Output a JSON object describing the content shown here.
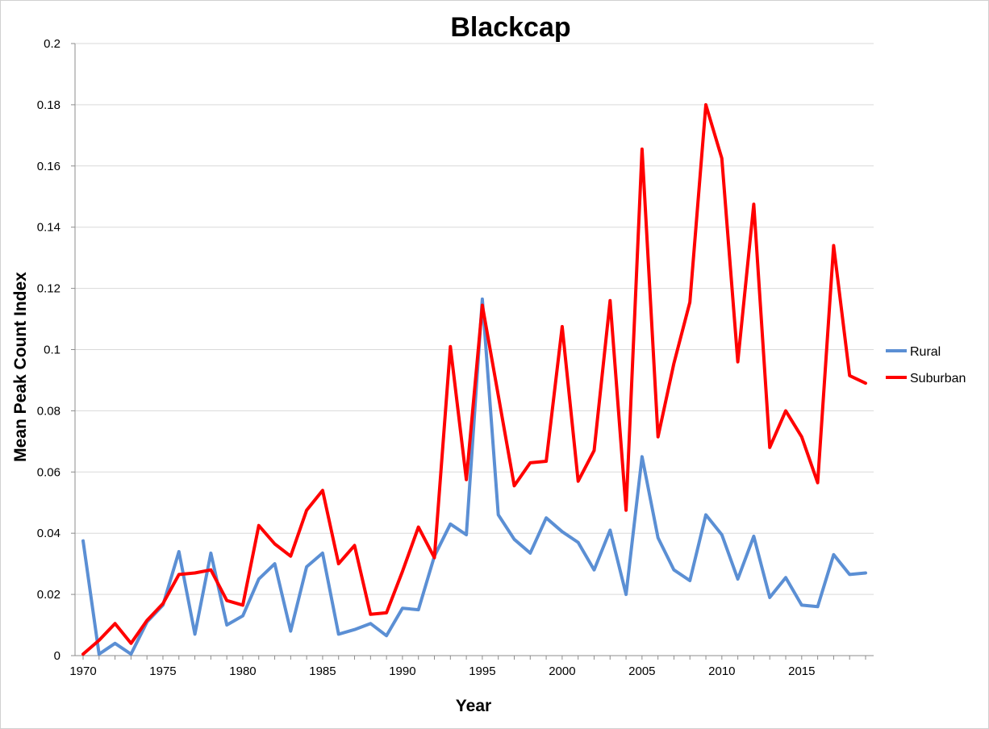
{
  "chart_data": {
    "type": "line",
    "title": "Blackcap",
    "xlabel": "Year",
    "ylabel": "Mean Peak Count Index",
    "xlim": [
      1970,
      2019
    ],
    "ylim": [
      0,
      0.2
    ],
    "x_ticks": [
      "1970",
      "1975",
      "1980",
      "1985",
      "1990",
      "1995",
      "2000",
      "2005",
      "2010",
      "2015"
    ],
    "y_ticks": [
      "0",
      "0.02",
      "0.04",
      "0.06",
      "0.08",
      "0.1",
      "0.12",
      "0.14",
      "0.16",
      "0.18",
      "0.2"
    ],
    "grid": "horizontal",
    "legend_position": "right",
    "x": [
      1970,
      1971,
      1972,
      1973,
      1974,
      1975,
      1976,
      1977,
      1978,
      1979,
      1980,
      1981,
      1982,
      1983,
      1984,
      1985,
      1986,
      1987,
      1988,
      1989,
      1990,
      1991,
      1992,
      1993,
      1994,
      1995,
      1996,
      1997,
      1998,
      1999,
      2000,
      2001,
      2002,
      2003,
      2004,
      2005,
      2006,
      2007,
      2008,
      2009,
      2010,
      2011,
      2012,
      2013,
      2014,
      2015,
      2016,
      2017,
      2018,
      2019
    ],
    "series": [
      {
        "name": "Rural",
        "color": "#5b8fd4",
        "values": [
          0.0375,
          0.0005,
          0.004,
          0.0005,
          0.011,
          0.0165,
          0.034,
          0.007,
          0.0335,
          0.01,
          0.013,
          0.025,
          0.03,
          0.008,
          0.029,
          0.0335,
          0.007,
          0.0085,
          0.0105,
          0.0065,
          0.0155,
          0.015,
          0.0325,
          0.043,
          0.0395,
          0.1165,
          0.046,
          0.038,
          0.0335,
          0.045,
          0.0405,
          0.037,
          0.028,
          0.041,
          0.02,
          0.065,
          0.0385,
          0.028,
          0.0245,
          0.046,
          0.0395,
          0.025,
          0.039,
          0.019,
          0.0255,
          0.0165,
          0.016,
          0.033,
          0.0265,
          0.027
        ]
      },
      {
        "name": "Suburban",
        "color": "#ff0000",
        "values": [
          0.0005,
          0.005,
          0.0105,
          0.004,
          0.0115,
          0.017,
          0.0265,
          0.027,
          0.028,
          0.018,
          0.0165,
          0.0425,
          0.0365,
          0.0325,
          0.0475,
          0.054,
          0.03,
          0.036,
          0.0135,
          0.014,
          0.0275,
          0.042,
          0.032,
          0.101,
          0.0575,
          0.1145,
          0.085,
          0.0555,
          0.063,
          0.0635,
          0.1075,
          0.057,
          0.067,
          0.116,
          0.0475,
          0.1655,
          0.0715,
          0.0955,
          0.1155,
          0.18,
          0.1625,
          0.096,
          0.1475,
          0.068,
          0.08,
          0.0715,
          0.0565,
          0.134,
          0.0915,
          0.089
        ]
      }
    ]
  }
}
